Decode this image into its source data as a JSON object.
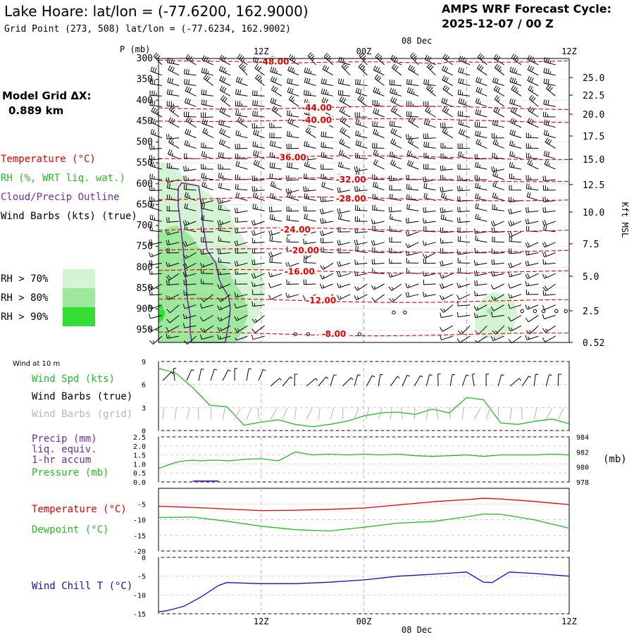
{
  "header": {
    "title": "Lake Hoare:  lat/lon = (-77.6200, 162.9000)",
    "grid_point": "Grid Point (273, 508) lat/lon = (-77.6234, 162.9002)",
    "cycle_line1": "AMPS WRF Forecast Cycle:",
    "cycle_line2": "2025-12-07 / 00  Z",
    "model_grid_label": "Model Grid ΔX:",
    "model_grid_value": "0.889 km"
  },
  "colors": {
    "temperature": "#e00000",
    "rh": "#22bb22",
    "cloud": "#6a2fa0",
    "wind": "#000000",
    "wind_grid": "#b0b0b0",
    "wind_chill": "#1010c0",
    "rh70": "#d3f5d3",
    "rh80": "#9ee89e",
    "rh90": "#33dd33"
  },
  "legend": {
    "temperature": "Temperature (°C)",
    "rh": "RH (%, WRT liq. wat.)",
    "cloud": "Cloud/Precip Outline",
    "wind": "Wind Barbs (kts) (true)",
    "rh70": "RH > 70%",
    "rh80": "RH > 80%",
    "rh90": "RH > 90%"
  },
  "time_axis": {
    "top_date": "08 Dec",
    "bottom_date": "08 Dec",
    "ticks": [
      "12Z",
      "00Z",
      "12Z"
    ]
  },
  "chart_data": [
    {
      "type": "contour",
      "name": "sounding",
      "ylabel_left": "P (mb)",
      "ylabel_right": "Kft MSL",
      "pressure_ticks": [
        "300",
        "350",
        "400",
        "450",
        "500",
        "550",
        "600",
        "650",
        "700",
        "750",
        "800",
        "850",
        "900",
        "950"
      ],
      "height_ticks": [
        "25.0",
        "22.5",
        "20.0",
        "17.5",
        "15.0",
        "12.5",
        "10.0",
        "7.5",
        "5.0",
        "2.5",
        "0.52"
      ],
      "temperature_contours": [
        {
          "label": "-48.00",
          "pressure": 308
        },
        {
          "label": "-44.00",
          "pressure": 418
        },
        {
          "label": "-40.00",
          "pressure": 448
        },
        {
          "label": "-36.00",
          "pressure": 537
        },
        {
          "label": "-32.00",
          "pressure": 590
        },
        {
          "label": "-28.00",
          "pressure": 636
        },
        {
          "label": "-24.00",
          "pressure": 710
        },
        {
          "label": "-20.00",
          "pressure": 760
        },
        {
          "label": "-16.00",
          "pressure": 810
        },
        {
          "label": "-12.00",
          "pressure": 880
        },
        {
          "label": "-8.00",
          "pressure": 960
        }
      ]
    },
    {
      "type": "line",
      "name": "wind10m",
      "panel_label": "Wind at 10 m",
      "series_label": "Wind Spd (kts)",
      "barbs_true_label": "Wind Barbs (true)",
      "barbs_grid_label": "Wind Barbs (grid)",
      "y_ticks": [
        "9",
        "6",
        "3",
        "0"
      ],
      "ylim": [
        0,
        9
      ],
      "hours": [
        0,
        2,
        4,
        6,
        8,
        10,
        12,
        14,
        16,
        18,
        20,
        22,
        24,
        26,
        28,
        30,
        32,
        34,
        36,
        38,
        40,
        42,
        44,
        46,
        48
      ],
      "speed": [
        8.1,
        7.5,
        5.6,
        3.3,
        3.1,
        0.7,
        1.1,
        1.4,
        0.8,
        0.5,
        0.8,
        1.2,
        1.9,
        2.3,
        2.4,
        2.1,
        2.8,
        2.3,
        4.3,
        4.0,
        1.0,
        0.8,
        1.2,
        1.5,
        0.9
      ]
    },
    {
      "type": "line",
      "name": "precip_pressure",
      "precip_label1": "Precip (mm)",
      "precip_label2": "liq. equiv.",
      "precip_label3": "1-hr accum",
      "pressure_label": "Pressure (mb)",
      "right_unit": "(mb)",
      "left_ticks": [
        "2.5",
        "2.0",
        "1.5",
        "1.0",
        "0.5",
        "0.0"
      ],
      "right_ticks": [
        "984",
        "982",
        "980",
        "978"
      ],
      "ylim_pressure": [
        978,
        984
      ],
      "hours": [
        0,
        1,
        2,
        3,
        4,
        5,
        6,
        7,
        8,
        9,
        10,
        12,
        14,
        16,
        18,
        20,
        22,
        24,
        26,
        28,
        30,
        32,
        34,
        36,
        38,
        40,
        42,
        44,
        46,
        48
      ],
      "pressure": [
        979.8,
        980.2,
        980.6,
        980.8,
        980.9,
        980.8,
        980.9,
        980.9,
        980.8,
        980.9,
        981.0,
        981.1,
        980.8,
        982.0,
        981.6,
        981.7,
        981.6,
        981.7,
        981.6,
        981.7,
        981.5,
        981.4,
        981.5,
        981.6,
        981.4,
        981.6,
        981.6,
        981.6,
        981.7,
        981.6
      ],
      "precip": [
        {
          "hour": 4,
          "value": 0.05
        },
        {
          "hour": 5,
          "value": 0.05
        },
        {
          "hour": 6,
          "value": 0.05
        }
      ]
    },
    {
      "type": "line",
      "name": "temp_dew",
      "temp_label": "Temperature (°C)",
      "dew_label": "Dewpoint (°C)",
      "y_ticks": [
        "-5",
        "-10",
        "-15",
        "-20"
      ],
      "ylim": [
        -20,
        0
      ],
      "hours": [
        0,
        4,
        8,
        12,
        16,
        20,
        24,
        28,
        32,
        36,
        38,
        40,
        44,
        48
      ],
      "temperature": [
        -5.7,
        -6.1,
        -6.6,
        -7.1,
        -7.0,
        -6.7,
        -6.3,
        -5.3,
        -4.3,
        -3.6,
        -3.2,
        -3.4,
        -4.2,
        -5.2
      ],
      "dewpoint": [
        -9.3,
        -9.2,
        -10.5,
        -12.1,
        -13.2,
        -13.6,
        -12.4,
        -11.1,
        -10.6,
        -9.1,
        -8.2,
        -8.3,
        -10.1,
        -12.7
      ]
    },
    {
      "type": "line",
      "name": "windchill",
      "label": "Wind Chill T (°C)",
      "y_ticks": [
        "0",
        "-5",
        "-10",
        "-15"
      ],
      "ylim": [
        -15,
        0
      ],
      "hours": [
        0,
        1,
        3,
        5,
        7,
        8,
        12,
        16,
        20,
        24,
        28,
        32,
        36,
        38,
        39,
        41,
        44,
        48
      ],
      "windchill": [
        -14.5,
        -14.2,
        -13.0,
        -10.5,
        -7.5,
        -6.7,
        -7.0,
        -7.0,
        -6.6,
        -6.0,
        -5.0,
        -4.5,
        -3.9,
        -6.6,
        -6.7,
        -3.9,
        -4.3,
        -5.0
      ]
    }
  ]
}
